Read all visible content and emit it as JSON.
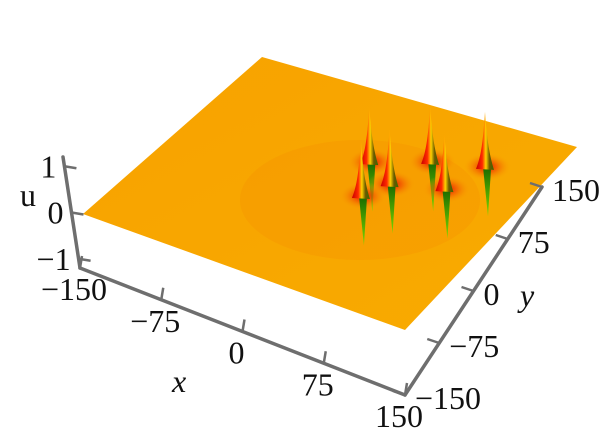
{
  "chart_data": {
    "type": "surface3d",
    "title": "",
    "x_axis": {
      "label": "x",
      "range": [
        -150,
        150
      ],
      "ticks": [
        -150,
        -75,
        0,
        75,
        150
      ],
      "tick_labels": [
        "−150",
        "−75",
        "0",
        "75",
        "150"
      ]
    },
    "y_axis": {
      "label": "y",
      "range": [
        -150,
        150
      ],
      "ticks": [
        -150,
        -75,
        0,
        75,
        150
      ],
      "tick_labels": [
        "−150",
        "−75",
        "0",
        "75",
        "150"
      ]
    },
    "z_axis": {
      "label": "u",
      "range": [
        -1,
        1
      ],
      "ticks": [
        -1,
        0,
        1
      ],
      "tick_labels": [
        "−1",
        "0",
        "1"
      ]
    },
    "surface": {
      "baseline": 0,
      "colormap": [
        "#22a812",
        "#f5a900",
        "#e80a0a"
      ],
      "base_color": "#f7a600"
    },
    "peaks": [
      {
        "x": 0,
        "y": 60,
        "height": 1
      },
      {
        "x": 40,
        "y": 90,
        "height": 1
      },
      {
        "x": 80,
        "y": 110,
        "height": 1
      },
      {
        "x": 30,
        "y": 40,
        "height": 1
      },
      {
        "x": 70,
        "y": 60,
        "height": 1
      },
      {
        "x": 20,
        "y": 10,
        "height": 1
      }
    ]
  }
}
